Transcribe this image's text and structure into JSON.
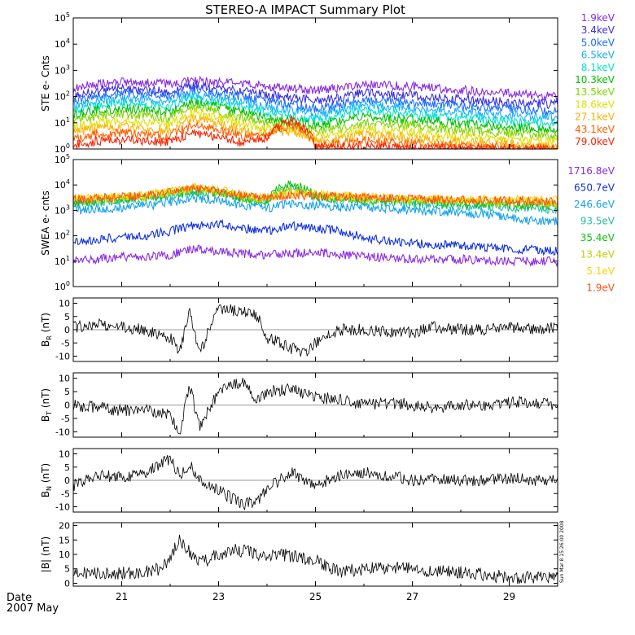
{
  "title": "STEREO-A IMPACT Summary Plot",
  "date_label": "Date",
  "date_value": "2007 May",
  "timestamp": "Sun Mar  8 15:26:00 2008",
  "colors": {
    "ste": [
      "#8a2be2",
      "#3a2fe0",
      "#1f6bff",
      "#17b0ff",
      "#00e0d0",
      "#00c000",
      "#7fd400",
      "#e0e000",
      "#ffb000",
      "#ff6000",
      "#ff2000"
    ],
    "swea": [
      "#8a2be2",
      "#1030e0",
      "#10a0f0",
      "#20c0a0",
      "#10c010",
      "#c0d000",
      "#ffd000",
      "#ff5010"
    ],
    "line": "#000000"
  },
  "chart_data": [
    {
      "id": "ste",
      "type": "line",
      "ylabel": "STE e- Cnts",
      "yscale": "log",
      "ylim": [
        1,
        100000
      ],
      "yticks": [
        "10^0",
        "10^1",
        "10^2",
        "10^3",
        "10^4",
        "10^5"
      ],
      "xlim": [
        20.0,
        30.0
      ],
      "x": [
        20.0,
        20.5,
        21.0,
        21.5,
        22.0,
        22.5,
        23.0,
        23.5,
        24.0,
        24.5,
        25.0,
        25.5,
        26.0,
        26.5,
        27.0,
        27.5,
        28.0,
        28.5,
        29.0,
        29.5,
        30.0
      ],
      "series": [
        {
          "name": "1.9keV",
          "values": [
            200,
            300,
            350,
            330,
            300,
            400,
            350,
            300,
            250,
            200,
            180,
            200,
            300,
            260,
            250,
            200,
            180,
            150,
            130,
            110,
            100
          ]
        },
        {
          "name": "3.4keV",
          "values": [
            110,
            160,
            200,
            180,
            160,
            260,
            200,
            160,
            120,
            90,
            70,
            90,
            140,
            120,
            110,
            90,
            80,
            70,
            60,
            55,
            50
          ]
        },
        {
          "name": "5.0keV",
          "values": [
            70,
            100,
            130,
            120,
            100,
            180,
            130,
            100,
            70,
            50,
            35,
            50,
            80,
            70,
            60,
            50,
            45,
            40,
            35,
            30,
            28
          ]
        },
        {
          "name": "6.5keV",
          "values": [
            45,
            65,
            85,
            75,
            60,
            120,
            90,
            60,
            40,
            30,
            20,
            30,
            50,
            40,
            35,
            30,
            25,
            22,
            20,
            17,
            15
          ]
        },
        {
          "name": "8.1keV",
          "values": [
            30,
            45,
            55,
            50,
            40,
            90,
            60,
            40,
            25,
            18,
            12,
            18,
            30,
            25,
            22,
            18,
            15,
            13,
            11,
            10,
            9
          ]
        },
        {
          "name": "10.3keV",
          "values": [
            20,
            30,
            35,
            30,
            25,
            60,
            40,
            25,
            15,
            12,
            8,
            11,
            18,
            15,
            13,
            11,
            9,
            8,
            7,
            6,
            5
          ]
        },
        {
          "name": "13.5keV",
          "values": [
            12,
            18,
            22,
            18,
            15,
            40,
            25,
            15,
            9,
            8,
            5,
            6,
            10,
            9,
            8,
            6,
            5,
            4.5,
            4,
            3.5,
            3
          ]
        },
        {
          "name": "18.6keV",
          "values": [
            7,
            10,
            12,
            10,
            8,
            25,
            15,
            9,
            6,
            6,
            3,
            4,
            6,
            5,
            4.5,
            3.5,
            3,
            2.6,
            2.3,
            2,
            1.8
          ]
        },
        {
          "name": "27.1keV",
          "values": [
            4,
            6,
            7,
            6,
            5,
            15,
            9,
            5,
            4,
            5,
            2,
            2.5,
            3.5,
            3,
            2.6,
            2.2,
            1.9,
            1.7,
            1.5,
            1.3,
            1.2
          ]
        },
        {
          "name": "43.1keV",
          "values": [
            2.5,
            3.5,
            4,
            3.5,
            3,
            8,
            5,
            3,
            3,
            8,
            1.5,
            1.6,
            2,
            1.8,
            1.6,
            1.4,
            1.3,
            1.2,
            1.1,
            1.05,
            1.0
          ]
        },
        {
          "name": "79.0keV",
          "values": [
            1.5,
            2,
            2.2,
            2,
            1.8,
            4,
            2.5,
            1.8,
            2.5,
            12,
            1.2,
            1.2,
            1.3,
            1.2,
            1.1,
            1.05,
            1.0,
            1.0,
            1.0,
            1.0,
            1.0
          ]
        }
      ]
    },
    {
      "id": "swea",
      "type": "line",
      "ylabel": "SWEA e- cnts",
      "yscale": "log",
      "ylim": [
        1,
        100000
      ],
      "yticks": [
        "10^0",
        "10^1",
        "10^2",
        "10^3",
        "10^4",
        "10^5"
      ],
      "xlim": [
        20.0,
        30.0
      ],
      "x": [
        20.0,
        20.5,
        21.0,
        21.5,
        22.0,
        22.5,
        23.0,
        23.5,
        24.0,
        24.5,
        25.0,
        25.5,
        26.0,
        26.5,
        27.0,
        27.5,
        28.0,
        28.5,
        29.0,
        29.5,
        30.0
      ],
      "series": [
        {
          "name": "1716.8eV",
          "values": [
            12,
            12,
            15,
            14,
            18,
            30,
            25,
            20,
            18,
            20,
            22,
            18,
            15,
            14,
            12,
            12,
            12,
            11,
            10,
            10,
            10
          ]
        },
        {
          "name": "650.7eV",
          "values": [
            60,
            70,
            90,
            100,
            150,
            250,
            300,
            200,
            150,
            250,
            200,
            150,
            80,
            60,
            50,
            45,
            40,
            35,
            30,
            28,
            25
          ]
        },
        {
          "name": "246.6eV",
          "values": [
            1000,
            1100,
            1300,
            1500,
            2000,
            3000,
            2500,
            1500,
            1200,
            1800,
            1500,
            1400,
            1300,
            1100,
            1000,
            900,
            800,
            700,
            500,
            400,
            350
          ]
        },
        {
          "name": "93.5eV",
          "values": [
            1800,
            2000,
            2500,
            2800,
            3500,
            5000,
            4500,
            2800,
            2000,
            8000,
            3000,
            2500,
            2200,
            2000,
            1800,
            1600,
            1500,
            1400,
            1300,
            1200,
            1100
          ]
        },
        {
          "name": "35.4eV",
          "values": [
            2000,
            2200,
            2800,
            3200,
            4000,
            6000,
            5000,
            3000,
            2200,
            12000,
            3500,
            3000,
            2600,
            2400,
            2200,
            2000,
            1900,
            1800,
            1700,
            1600,
            1500
          ]
        },
        {
          "name": "13.4eV",
          "values": [
            2500,
            2700,
            3200,
            3600,
            5000,
            7500,
            5500,
            3500,
            2800,
            6000,
            4000,
            3500,
            3000,
            2800,
            2600,
            2500,
            2400,
            2300,
            2200,
            2100,
            2000
          ]
        },
        {
          "name": "5.1eV",
          "values": [
            3000,
            3200,
            3600,
            4000,
            5500,
            8000,
            6000,
            4000,
            3200,
            4500,
            4200,
            3800,
            3400,
            3200,
            3000,
            2900,
            2800,
            2700,
            2600,
            2500,
            2400
          ]
        },
        {
          "name": "1.9eV",
          "values": [
            2800,
            3000,
            3400,
            3800,
            5000,
            7000,
            5500,
            3600,
            3000,
            4000,
            3800,
            3500,
            3100,
            2900,
            2800,
            2700,
            2600,
            2500,
            2400,
            2300,
            2200
          ]
        }
      ]
    },
    {
      "id": "br",
      "type": "line",
      "ylabel": "B_R (nT)",
      "ylim": [
        -12,
        12
      ],
      "yticks": [
        -10,
        -5,
        0,
        5,
        10
      ],
      "xlim": [
        20.0,
        30.0
      ],
      "x": [
        20.0,
        20.5,
        21.0,
        21.5,
        22.0,
        22.2,
        22.4,
        22.6,
        23.0,
        23.5,
        23.8,
        24.0,
        24.5,
        24.8,
        25.0,
        25.5,
        26.0,
        26.5,
        27.0,
        27.5,
        28.0,
        28.5,
        29.0,
        29.5,
        30.0
      ],
      "series": [
        {
          "name": "B_R",
          "values": [
            1,
            2,
            1,
            0,
            -3,
            -8,
            7,
            -9,
            8,
            7,
            5,
            -3,
            -7,
            -9,
            -5,
            0,
            0,
            -1,
            -1,
            1,
            0,
            0,
            1,
            0,
            1
          ]
        }
      ]
    },
    {
      "id": "bt",
      "type": "line",
      "ylabel": "B_T (nT)",
      "ylim": [
        -12,
        12
      ],
      "yticks": [
        -10,
        -5,
        0,
        5,
        10
      ],
      "xlim": [
        20.0,
        30.0
      ],
      "x": [
        20.0,
        20.5,
        21.0,
        21.5,
        22.0,
        22.2,
        22.4,
        22.6,
        23.0,
        23.5,
        23.8,
        24.0,
        24.5,
        24.8,
        25.0,
        25.5,
        26.0,
        26.5,
        27.0,
        27.5,
        28.0,
        28.5,
        29.0,
        29.5,
        30.0
      ],
      "series": [
        {
          "name": "B_T",
          "values": [
            0,
            -1,
            -2,
            -2,
            -4,
            -10,
            8,
            -8,
            5,
            9,
            2,
            5,
            6,
            4,
            3,
            2,
            0,
            1,
            0,
            -1,
            0,
            0,
            1,
            1,
            0
          ]
        }
      ]
    },
    {
      "id": "bn",
      "type": "line",
      "ylabel": "B_N (nT)",
      "ylim": [
        -12,
        12
      ],
      "yticks": [
        -10,
        -5,
        0,
        5,
        10
      ],
      "xlim": [
        20.0,
        30.0
      ],
      "x": [
        20.0,
        20.5,
        21.0,
        21.5,
        22.0,
        22.2,
        22.4,
        22.6,
        23.0,
        23.5,
        23.8,
        24.0,
        24.5,
        24.8,
        25.0,
        25.5,
        26.0,
        26.5,
        27.0,
        27.5,
        28.0,
        28.5,
        29.0,
        29.5,
        30.0
      ],
      "series": [
        {
          "name": "B_N",
          "values": [
            -2,
            2,
            1,
            3,
            8,
            2,
            6,
            0,
            -4,
            -9,
            -8,
            -3,
            3,
            0,
            -2,
            2,
            3,
            2,
            0,
            1,
            0,
            0,
            1,
            0,
            0
          ]
        }
      ]
    },
    {
      "id": "bmag",
      "type": "line",
      "ylabel": "|B| (nT)",
      "ylim": [
        -1,
        21
      ],
      "yticks": [
        0,
        5,
        10,
        15,
        20
      ],
      "xlim": [
        20.0,
        30.0
      ],
      "x": [
        20.0,
        20.5,
        21.0,
        21.5,
        21.8,
        22.0,
        22.2,
        22.4,
        22.6,
        23.0,
        23.3,
        23.6,
        24.0,
        24.3,
        24.6,
        25.0,
        25.5,
        26.0,
        26.5,
        27.0,
        27.5,
        28.0,
        28.5,
        29.0,
        29.5,
        30.0
      ],
      "series": [
        {
          "name": "|B|",
          "values": [
            4,
            3.5,
            3.5,
            4,
            5,
            9,
            15,
            11,
            7,
            10,
            11.5,
            11,
            9,
            10,
            9,
            8,
            4,
            5,
            5.5,
            5,
            4,
            4,
            3,
            2,
            2,
            2
          ]
        }
      ]
    }
  ],
  "xaxis": {
    "tick_labels": [
      "21",
      "23",
      "25",
      "27",
      "29"
    ],
    "tick_values": [
      21,
      23,
      25,
      27,
      29
    ]
  }
}
